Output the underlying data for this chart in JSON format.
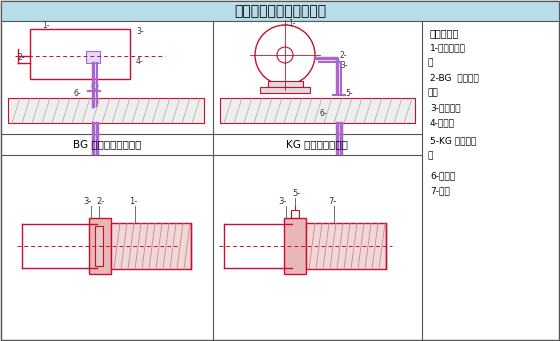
{
  "title": "电气配管进电动机做法图",
  "title_bg": "#b8dce8",
  "bg_color": "#f5f5f5",
  "legend_title": "符号说明：",
  "legend_items_line1": "1-电动机接线",
  "legend_item_box": "盒",
  "legend_items_line2": "2-BG  搂线箱连",
  "legend_items_line3": "接器",
  "legend_items_line4": "3-普利卡管",
  "legend_items_line5": "4-接地卡",
  "legend_items_line6": "5-KG 混合连接",
  "legend_item_q": "器",
  "legend_items_line7": "6-接地线",
  "legend_items_line8": "7-钢管",
  "sub_title_left": "BG 接线箱连接器详图",
  "sub_title_right": "KG 混合连接器详图",
  "red": "#c8102e",
  "purple": "#aa66cc",
  "hatch_color": "#bbbbbb",
  "panel_bg": "#f8f8f8"
}
